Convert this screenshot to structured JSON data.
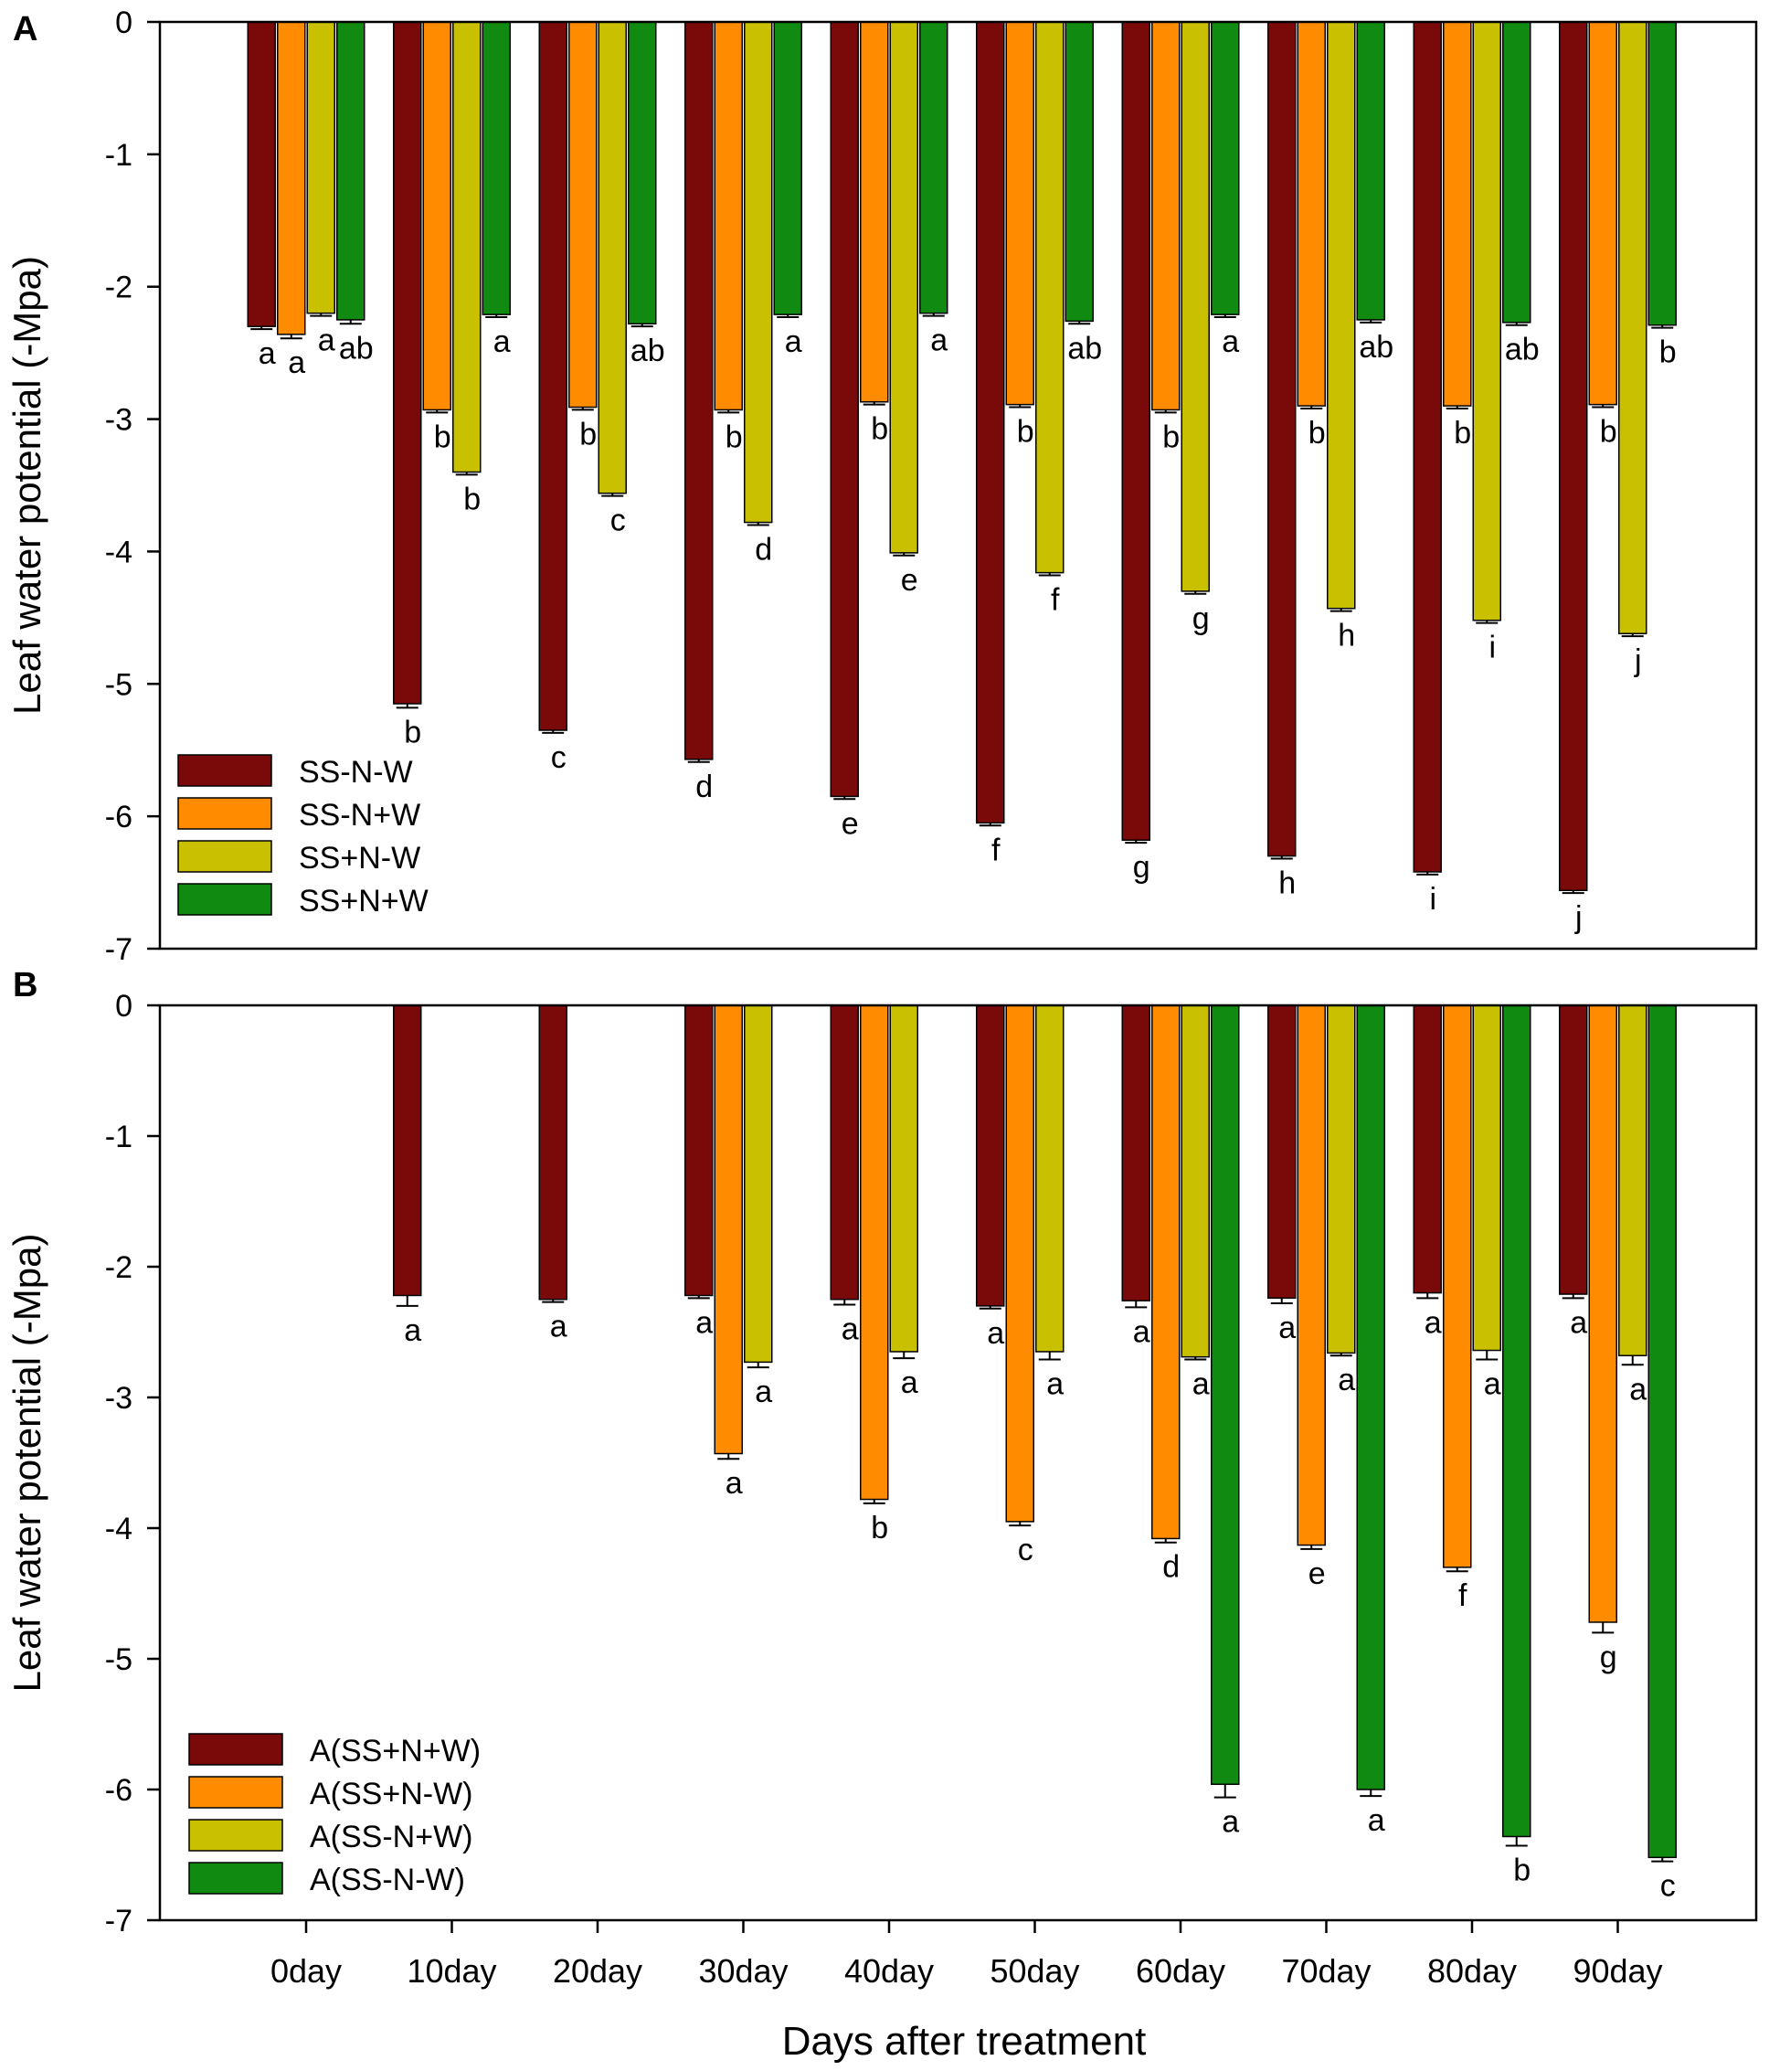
{
  "xlabel": "Days after treatment",
  "colors": {
    "maroon": "#7a0a0a",
    "orange": "#ff8c00",
    "olive": "#c8c000",
    "green": "#118a11",
    "axis": "#000000"
  },
  "chart_data": [
    {
      "type": "bar",
      "panel_label": "A",
      "ylabel": "Leaf water potential (-Mpa)",
      "ylim": [
        -7,
        0
      ],
      "yticks": [
        "0",
        "-1",
        "-2",
        "-3",
        "-4",
        "-5",
        "-6",
        "-7"
      ],
      "categories": [
        "0day",
        "10day",
        "20day",
        "30day",
        "40day",
        "50day",
        "60day",
        "70day",
        "80day",
        "90day"
      ],
      "legend_position": "bottom-left",
      "series": [
        {
          "name": "SS-N-W",
          "color": "#7a0a0a",
          "values": [
            -2.3,
            -5.15,
            -5.35,
            -5.57,
            -5.85,
            -6.05,
            -6.18,
            -6.3,
            -6.42,
            -6.56
          ],
          "errors": [
            0.02,
            0.03,
            0.02,
            0.02,
            0.02,
            0.02,
            0.02,
            0.02,
            0.02,
            0.02
          ],
          "labels": [
            "a",
            "b",
            "c",
            "d",
            "e",
            "f",
            "g",
            "h",
            "i",
            "j"
          ]
        },
        {
          "name": "SS-N+W",
          "color": "#ff8c00",
          "values": [
            -2.36,
            -2.93,
            -2.91,
            -2.93,
            -2.87,
            -2.89,
            -2.93,
            -2.9,
            -2.9,
            -2.89
          ],
          "errors": [
            0.03,
            0.02,
            0.02,
            0.02,
            0.02,
            0.02,
            0.02,
            0.02,
            0.02,
            0.02
          ],
          "labels": [
            "a",
            "b",
            "b",
            "b",
            "b",
            "b",
            "b",
            "b",
            "b",
            "b"
          ]
        },
        {
          "name": "SS+N-W",
          "color": "#c8c000",
          "values": [
            -2.2,
            -3.4,
            -3.56,
            -3.78,
            -4.01,
            -4.16,
            -4.3,
            -4.43,
            -4.52,
            -4.62
          ],
          "errors": [
            0.02,
            0.02,
            0.02,
            0.02,
            0.02,
            0.02,
            0.02,
            0.02,
            0.02,
            0.02
          ],
          "labels": [
            "a",
            "b",
            "c",
            "d",
            "e",
            "f",
            "g",
            "h",
            "i",
            "j"
          ]
        },
        {
          "name": "SS+N+W",
          "color": "#118a11",
          "values": [
            -2.25,
            -2.21,
            -2.28,
            -2.21,
            -2.2,
            -2.26,
            -2.21,
            -2.25,
            -2.27,
            -2.29
          ],
          "errors": [
            0.03,
            0.02,
            0.02,
            0.02,
            0.02,
            0.02,
            0.02,
            0.02,
            0.02,
            0.02
          ],
          "labels": [
            "ab",
            "a",
            "ab",
            "a",
            "a",
            "ab",
            "a",
            "ab",
            "ab",
            "b"
          ]
        }
      ]
    },
    {
      "type": "bar",
      "panel_label": "B",
      "ylabel": "Leaf water potential (-Mpa)",
      "ylim": [
        -7,
        0
      ],
      "yticks": [
        "0",
        "-1",
        "-2",
        "-3",
        "-4",
        "-5",
        "-6",
        "-7"
      ],
      "categories": [
        "0day",
        "10day",
        "20day",
        "30day",
        "40day",
        "50day",
        "60day",
        "70day",
        "80day",
        "90day"
      ],
      "legend_position": "bottom-left",
      "series": [
        {
          "name": "A(SS+N+W)",
          "color": "#7a0a0a",
          "values": [
            null,
            -2.22,
            -2.25,
            -2.22,
            -2.25,
            -2.3,
            -2.26,
            -2.24,
            -2.2,
            -2.21
          ],
          "errors": [
            null,
            0.08,
            0.02,
            0.02,
            0.04,
            0.02,
            0.05,
            0.04,
            0.04,
            0.03
          ],
          "labels": [
            null,
            "a",
            "a",
            "a",
            "a",
            "a",
            "a",
            "a",
            "a",
            "a"
          ]
        },
        {
          "name": "A(SS+N-W)",
          "color": "#ff8c00",
          "values": [
            null,
            null,
            null,
            -3.43,
            -3.78,
            -3.95,
            -4.08,
            -4.13,
            -4.3,
            -4.72
          ],
          "errors": [
            null,
            null,
            null,
            0.04,
            0.03,
            0.03,
            0.03,
            0.03,
            0.03,
            0.08
          ],
          "labels": [
            null,
            null,
            null,
            "a",
            "b",
            "c",
            "d",
            "e",
            "f",
            "g"
          ]
        },
        {
          "name": "A(SS-N+W)",
          "color": "#c8c000",
          "values": [
            null,
            null,
            null,
            -2.73,
            -2.65,
            -2.65,
            -2.69,
            -2.66,
            -2.64,
            -2.68
          ],
          "errors": [
            null,
            null,
            null,
            0.04,
            0.05,
            0.06,
            0.02,
            0.02,
            0.07,
            0.07
          ],
          "labels": [
            null,
            null,
            null,
            "a",
            "a",
            "a",
            "a",
            "a",
            "a",
            "a"
          ]
        },
        {
          "name": "A(SS-N-W)",
          "color": "#118a11",
          "values": [
            null,
            null,
            null,
            null,
            null,
            null,
            -5.96,
            -6.0,
            -6.36,
            -6.52
          ],
          "errors": [
            null,
            null,
            null,
            null,
            null,
            null,
            0.1,
            0.05,
            0.07,
            0.03
          ],
          "labels": [
            null,
            null,
            null,
            null,
            null,
            null,
            "a",
            "a",
            "b",
            "c"
          ]
        }
      ]
    }
  ]
}
